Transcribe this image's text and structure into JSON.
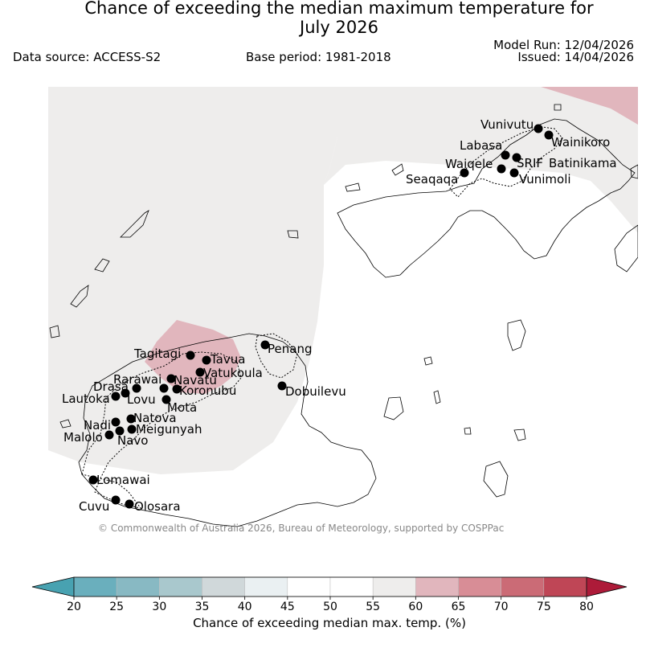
{
  "header": {
    "title_line1": "Chance of exceeding the median maximum temperature for",
    "title_line2": "July 2026",
    "data_source": "Data source: ACCESS-S2",
    "base_period": "Base period: 1981-2018",
    "model_run": "Model Run: 12/04/2026",
    "issued": "Issued: 14/04/2026"
  },
  "map": {
    "copyright": "© Commonwealth of Australia 2026, Bureau of Meteorology, supported by COSPPac",
    "places": [
      {
        "name": "Vunivutu"
      },
      {
        "name": "Wainikoro"
      },
      {
        "name": "Labasa"
      },
      {
        "name": "Waiqele"
      },
      {
        "name": "SRIF"
      },
      {
        "name": "Batinikama"
      },
      {
        "name": "Seaqaqa"
      },
      {
        "name": "Vunimoli"
      },
      {
        "name": "Penang"
      },
      {
        "name": "Tagitagi"
      },
      {
        "name": "Tavua"
      },
      {
        "name": "Vatukoula"
      },
      {
        "name": "Rarawai"
      },
      {
        "name": "Navatu"
      },
      {
        "name": "Drasa"
      },
      {
        "name": "Koronubu"
      },
      {
        "name": "Dobuilevu"
      },
      {
        "name": "Lautoka"
      },
      {
        "name": "Lovu"
      },
      {
        "name": "Mota"
      },
      {
        "name": "Nadi"
      },
      {
        "name": "Natova"
      },
      {
        "name": "Meigunyah"
      },
      {
        "name": "Malolo"
      },
      {
        "name": "Navo"
      },
      {
        "name": "Lomawai"
      },
      {
        "name": "Cuvu"
      },
      {
        "name": "Olosara"
      }
    ]
  },
  "colorbar": {
    "label": "Chance of exceeding median max. temp. (%)",
    "ticks": [
      "20",
      "25",
      "30",
      "35",
      "40",
      "45",
      "50",
      "55",
      "60",
      "65",
      "70",
      "75",
      "80"
    ],
    "colors": [
      "#6aafbd",
      "#88b9c3",
      "#a9c8cd",
      "#d0d8da",
      "#eaf0f2",
      "#ffffff",
      "#ffffff",
      "#eeedec",
      "#e1b6bd",
      "#d88d96",
      "#cb6b76",
      "#bf4656"
    ],
    "under_color": "#48a2b1",
    "over_color": "#ad1b39"
  },
  "legend_colors": {
    "near_median": "#eeedec",
    "above_median_60_65": "#e1b6bd"
  }
}
